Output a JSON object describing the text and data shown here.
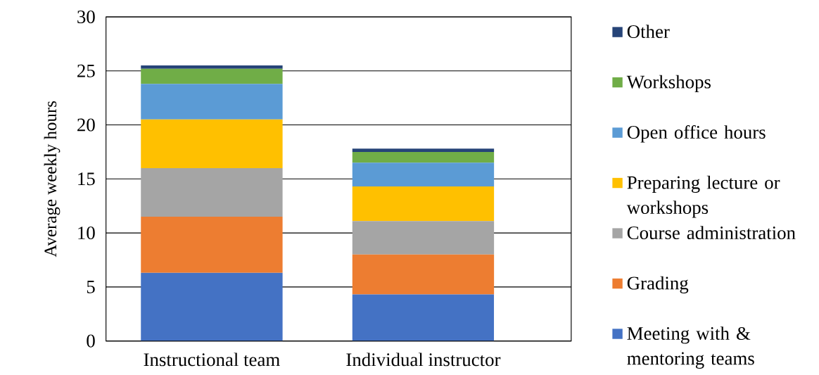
{
  "chart_data": {
    "type": "bar",
    "stacked": true,
    "ylabel": "Average weekly hours",
    "categories": [
      "Instructional team",
      "Individual instructor"
    ],
    "series": [
      {
        "name": "Meeting with & mentoring teams",
        "color": "#4472c4",
        "values": [
          6.3,
          4.3
        ]
      },
      {
        "name": "Grading",
        "color": "#ed7d31",
        "values": [
          5.2,
          3.7
        ]
      },
      {
        "name": "Course administration",
        "color": "#a5a5a5",
        "values": [
          4.5,
          3.1
        ]
      },
      {
        "name": "Preparing lecture or workshops",
        "color": "#ffc000",
        "values": [
          4.5,
          3.2
        ]
      },
      {
        "name": "Open office hours",
        "color": "#5b9bd5",
        "values": [
          3.3,
          2.2
        ]
      },
      {
        "name": "Workshops",
        "color": "#70ad47",
        "values": [
          1.4,
          1.0
        ]
      },
      {
        "name": "Other",
        "color": "#264478",
        "values": [
          0.3,
          0.3
        ]
      }
    ],
    "ylim": [
      0,
      30
    ],
    "yticks": [
      0,
      5,
      10,
      15,
      20,
      25,
      30
    ],
    "grid": "y",
    "legend": "right"
  }
}
